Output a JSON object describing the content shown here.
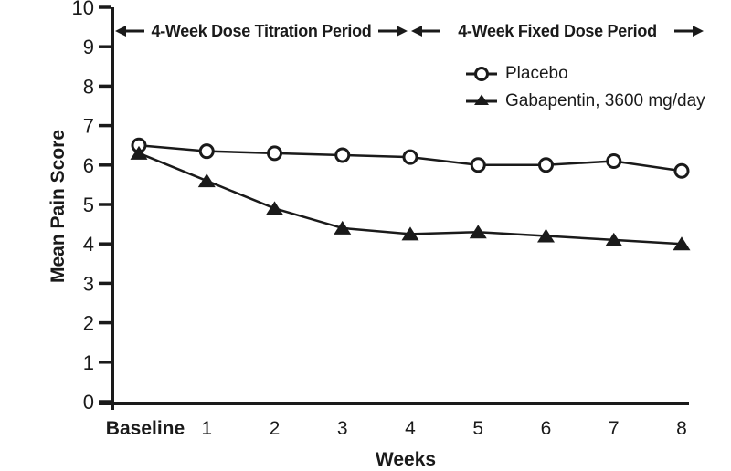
{
  "colors": {
    "line": "#1a1a1a",
    "marker_fill_open": "#ffffff",
    "background": "#ffffff"
  },
  "chart_data": {
    "type": "line",
    "title": "",
    "xlabel": "Weeks",
    "ylabel": "Mean Pain Score",
    "categories": [
      "Baseline",
      "1",
      "2",
      "3",
      "4",
      "5",
      "6",
      "7",
      "8"
    ],
    "y_ticks": [
      0,
      1,
      2,
      3,
      4,
      5,
      6,
      7,
      8,
      9,
      10
    ],
    "ylim": [
      0,
      10
    ],
    "grid": false,
    "legend_position": "top-right-inside",
    "annotations": [
      {
        "text": "4-Week Dose Titration Period",
        "arrows": "both-ends",
        "span": "baseline-to-week-4"
      },
      {
        "text": "4-Week Fixed Dose Period",
        "arrows": "both-ends",
        "span": "week-4-to-week-8"
      }
    ],
    "series": [
      {
        "name": "Placebo",
        "marker": "open-circle",
        "color": "#1a1a1a",
        "values": [
          6.5,
          6.35,
          6.3,
          6.25,
          6.2,
          6.0,
          6.0,
          6.1,
          5.85
        ]
      },
      {
        "name": "Gabapentin, 3600 mg/day",
        "marker": "filled-triangle",
        "color": "#1a1a1a",
        "values": [
          6.3,
          5.6,
          4.9,
          4.4,
          4.25,
          4.3,
          4.2,
          4.1,
          4.0
        ]
      }
    ]
  }
}
